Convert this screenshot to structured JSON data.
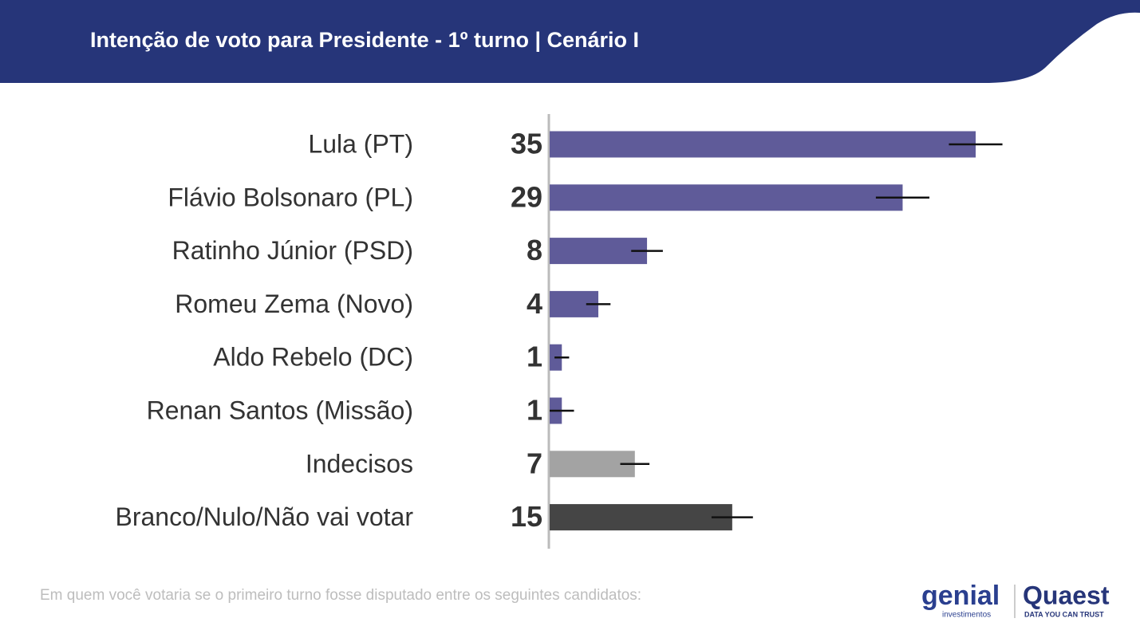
{
  "chart_data": {
    "type": "bar",
    "orientation": "horizontal",
    "title": "Intenção de voto para Presidente - 1º turno | Cenário I",
    "categories": [
      "Lula (PT)",
      "Flávio Bolsonaro (PL)",
      "Ratinho Júnior (PSD)",
      "Romeu Zema (Novo)",
      "Aldo Rebelo (DC)",
      "Renan Santos (Missão)",
      "Indecisos",
      "Branco/Nulo/Não vai votar"
    ],
    "values": [
      35,
      29,
      8,
      4,
      1,
      1,
      7,
      15
    ],
    "errors": [
      2.2,
      2.2,
      1.3,
      1.0,
      0.6,
      1.0,
      1.2,
      1.7
    ],
    "colors": [
      "#5f5b99",
      "#5f5b99",
      "#5f5b99",
      "#5f5b99",
      "#5f5b99",
      "#5f5b99",
      "#a3a3a3",
      "#454545"
    ],
    "note": "Em quem você votaria se o primeiro turno fosse disputado entre os seguintes candidatos:"
  },
  "logos": {
    "genial": "genial",
    "genial_sub": "investimentos",
    "quaest": "Quaest",
    "quaest_sub": "DATA YOU CAN TRUST"
  }
}
